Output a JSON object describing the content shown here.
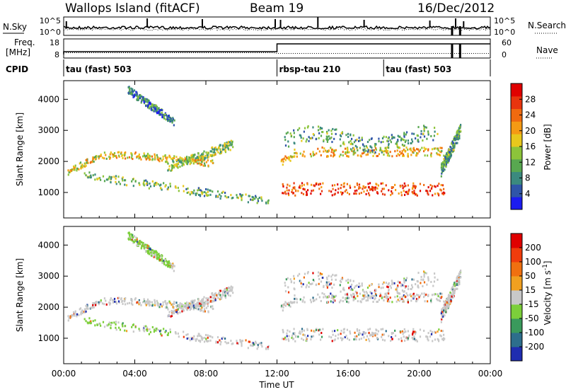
{
  "header": {
    "station": "Wallops Island (fitACF)",
    "beam": "Beam 19",
    "date": "16/Dec/2012"
  },
  "strip_labels": {
    "nsky": "N.Sky",
    "nsearch": "N.Search",
    "freq_line1": "Freq.",
    "freq_line2": "[MHz]",
    "nave": "Nave",
    "cpid": "CPID"
  },
  "strip_ticks": {
    "nsky_left": [
      "10^5",
      "10^0"
    ],
    "nsky_right": [
      "10^5",
      "10^0"
    ],
    "freq_left": [
      "18",
      "8"
    ],
    "nave_right": [
      "60",
      "0"
    ]
  },
  "cpid_segments": [
    {
      "label": "tau (fast) 503",
      "start_hour": 0
    },
    {
      "label": "rbsp-tau 210",
      "start_hour": 12
    },
    {
      "label": "tau (fast) 503",
      "start_hour": 18
    }
  ],
  "chart_data": [
    {
      "type": "heatmap",
      "title": "",
      "xlabel": "Time UT",
      "ylabel": "Slant Range [km]",
      "xlim_hours": [
        0,
        24
      ],
      "ylim": [
        180,
        4600
      ],
      "x_tick_labels": [
        "00:00",
        "04:00",
        "08:00",
        "12:00",
        "16:00",
        "20:00",
        "00:00"
      ],
      "y_tick_values": [
        1000,
        2000,
        3000,
        4000
      ],
      "y_tick_labels": [
        "1000",
        "2000",
        "3000",
        "4000"
      ],
      "colorbar": {
        "label": "Power [dB]",
        "tick_labels": [
          "28",
          "24",
          "20",
          "16",
          "12",
          "8",
          "4"
        ],
        "colors": [
          "#1c1cf0",
          "#2f55a8",
          "#3b8a7e",
          "#58a850",
          "#8cc43a",
          "#e8c81c",
          "#f59a14",
          "#f06a10",
          "#e8340e",
          "#e00000"
        ]
      }
    },
    {
      "type": "heatmap",
      "title": "",
      "xlabel": "Time UT",
      "ylabel": "Slant Range [km]",
      "xlim_hours": [
        0,
        24
      ],
      "ylim": [
        180,
        4600
      ],
      "x_tick_labels": [
        "00:00",
        "04:00",
        "08:00",
        "12:00",
        "16:00",
        "20:00",
        "00:00"
      ],
      "y_tick_values": [
        1000,
        2000,
        3000,
        4000
      ],
      "y_tick_labels": [
        "1000",
        "2000",
        "3000",
        "4000"
      ],
      "colorbar": {
        "label": "Velocity [m s^-1]",
        "tick_labels": [
          "200",
          "100",
          "50",
          "15",
          "-15",
          "-50",
          "-100",
          "-200"
        ],
        "colors": [
          "#1f2db0",
          "#2d6e8c",
          "#3a9a5c",
          "#7ccf3a",
          "#c8c8c8",
          "#f0a020",
          "#f07010",
          "#f03c0c",
          "#e00000"
        ]
      }
    }
  ]
}
